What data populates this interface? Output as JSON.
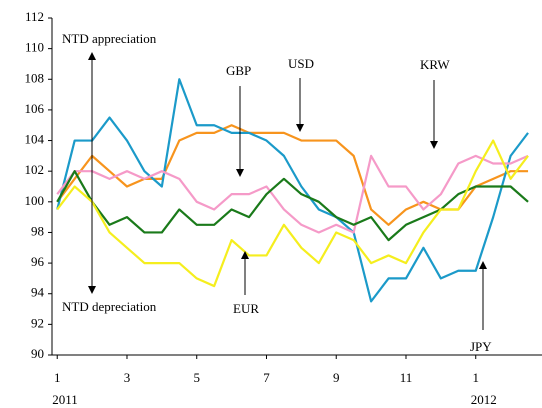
{
  "chart_data": {
    "type": "line",
    "x": [
      0,
      0.5,
      1,
      1.5,
      2,
      2.5,
      3,
      3.5,
      4,
      4.5,
      5,
      5.5,
      6,
      6.5,
      7,
      7.5,
      8,
      8.5,
      9,
      9.5,
      10,
      10.5,
      11,
      11.5,
      12,
      12.5,
      13,
      13.5
    ],
    "xlim": [
      -0.15,
      13.9
    ],
    "xticks": [
      {
        "value": 0,
        "label": "1"
      },
      {
        "value": 2,
        "label": "3"
      },
      {
        "value": 4,
        "label": "5"
      },
      {
        "value": 6,
        "label": "7"
      },
      {
        "value": 8,
        "label": "9"
      },
      {
        "value": 10,
        "label": "11"
      },
      {
        "value": 12,
        "label": "1"
      }
    ],
    "year_labels": [
      {
        "value": 0,
        "label": "2011"
      },
      {
        "value": 12,
        "label": "2012"
      }
    ],
    "ylim": [
      90,
      112
    ],
    "yticks": [
      90,
      92,
      94,
      96,
      98,
      100,
      102,
      104,
      106,
      108,
      110,
      112
    ],
    "grid": false,
    "annotations": [
      "NTD appreciation",
      "NTD depreciation"
    ],
    "series": [
      {
        "name": "USD",
        "color": "#f7941d",
        "values": [
          100,
          101.5,
          103,
          102,
          101,
          101.5,
          101.5,
          104,
          104.5,
          104.5,
          105,
          104.5,
          104.5,
          104.5,
          104,
          104,
          104,
          103,
          99.5,
          98.5,
          99.5,
          100,
          99.5,
          99.5,
          101,
          101.5,
          102,
          102
        ]
      },
      {
        "name": "JPY",
        "color": "#1b9ac9",
        "values": [
          99.5,
          104,
          104,
          105.5,
          104,
          102,
          101,
          108,
          105,
          105,
          104.5,
          104.5,
          104,
          103,
          101,
          99.5,
          99,
          98,
          93.5,
          95,
          95,
          97,
          95,
          95.5,
          95.5,
          99,
          103,
          104.5
        ]
      },
      {
        "name": "KRW",
        "color": "#f59ac8",
        "values": [
          100.5,
          102,
          102,
          101.5,
          102,
          101.5,
          102,
          101.5,
          100,
          99.5,
          100.5,
          100.5,
          101,
          99.5,
          98.5,
          98,
          98.5,
          98,
          103,
          101,
          101,
          99.5,
          100.5,
          102.5,
          103,
          102.5,
          102.5,
          103
        ]
      },
      {
        "name": "GBP",
        "color": "#1a7a1a",
        "values": [
          100,
          102,
          100,
          98.5,
          99,
          98,
          98,
          99.5,
          98.5,
          98.5,
          99.5,
          99,
          100.5,
          101.5,
          100.5,
          100,
          99,
          98.5,
          99,
          97.5,
          98.5,
          99,
          99.5,
          100.5,
          101,
          101,
          101,
          100
        ]
      },
      {
        "name": "EUR",
        "color": "#f5ee1e",
        "values": [
          99.5,
          101,
          100,
          98,
          97,
          96,
          96,
          96,
          95,
          94.5,
          97.5,
          96.5,
          96.5,
          98.5,
          97,
          96,
          98,
          97.5,
          96,
          96.5,
          96,
          98,
          99.5,
          99.5,
          102,
          104,
          101.5,
          103
        ]
      }
    ]
  }
}
